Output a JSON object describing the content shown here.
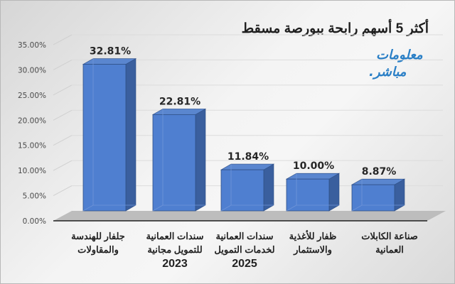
{
  "chart_data": {
    "type": "bar",
    "title": "أكثر 5 أسهم رابحة ببورصة مسقط",
    "categories": [
      "جلفار للهندسة والمقاولات",
      "سندات العمانية للتمويل مجانية 2023",
      "سندات العمانية لخدمات التمويل 2025",
      "ظفار للأغذية والاستثمار",
      "صناعة الكابلات العمانية"
    ],
    "values": [
      32.81,
      22.81,
      11.84,
      10.0,
      8.87
    ],
    "value_labels": [
      "32.81%",
      "22.81%",
      "11.84%",
      "10.00%",
      "8.87%"
    ],
    "xlabel": "",
    "ylabel": "",
    "ylim": [
      0,
      35
    ],
    "yticks": [
      "0.00%",
      "5.00%",
      "10.00%",
      "15.00%",
      "20.00%",
      "25.00%",
      "30.00%",
      "35.00%"
    ],
    "grid": true,
    "style": "3d-column",
    "bar_color": "#4472C4"
  },
  "header": {
    "title": "أكثر 5 أسهم رابحة ببورصة مسقط"
  },
  "logo": {
    "line1": "معلومات",
    "line2": "مباشر."
  },
  "categories_display": [
    {
      "line1": "جلفار للهندسة",
      "line2": "والمقاولات",
      "year": ""
    },
    {
      "line1": "سندات العمانية",
      "line2": "للتمويل مجانية",
      "year": "2023"
    },
    {
      "line1": "سندات العمانية",
      "line2": "لخدمات التمويل",
      "year": "2025"
    },
    {
      "line1": "ظفار للأغذية",
      "line2": "والاستثمار",
      "year": ""
    },
    {
      "line1": "صناعة الكابلات",
      "line2": "العمانية",
      "year": ""
    }
  ],
  "colors": {
    "bar_front": "#4f7fd0",
    "bar_side": "#3a5f9e",
    "bar_top": "#5a86cf",
    "floor": "#bdbdbd"
  }
}
